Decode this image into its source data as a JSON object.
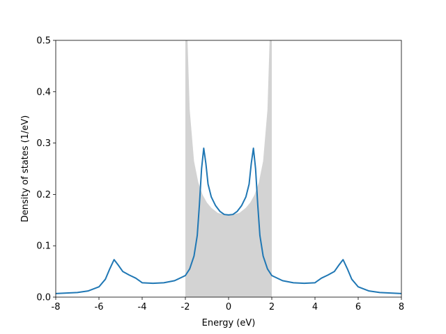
{
  "chart_data": {
    "type": "line",
    "xlabel": "Energy (eV)",
    "ylabel": "Density of states (1/eV)",
    "xlim": [
      -8,
      8
    ],
    "xticks": [
      -8,
      -6,
      -4,
      -2,
      0,
      2,
      4,
      6,
      8
    ],
    "ylim": [
      0,
      0.5
    ],
    "yticks": [
      {
        "value": 0,
        "label": "0.0"
      },
      0.1,
      0.2,
      0.3,
      0.4,
      0.5
    ],
    "series": [
      {
        "color": "#d3d3d3",
        "fill": true,
        "x": [
          -2,
          -1.95,
          -1.9,
          -1.8,
          -1.6,
          -1.4,
          -1.2,
          -1.0,
          -0.8,
          -0.5,
          0,
          0.5,
          0.8,
          1.0,
          1.2,
          1.4,
          1.6,
          1.8,
          1.9,
          1.95,
          2
        ],
        "values": [
          0.5,
          0.5,
          0.5,
          0.365,
          0.265,
          0.223,
          0.199,
          0.184,
          0.174,
          0.164,
          0.159,
          0.164,
          0.174,
          0.184,
          0.199,
          0.223,
          0.265,
          0.365,
          0.5,
          0.5,
          0.5
        ]
      },
      {
        "color": "#1f77b4",
        "x": [
          -8,
          -7,
          -6.5,
          -6,
          -5.7,
          -5.5,
          -5.3,
          -5.1,
          -4.9,
          -4.6,
          -4.3,
          -4.1,
          -4.0,
          -3.5,
          -3,
          -2.5,
          -2.0,
          -1.8,
          -1.6,
          -1.45,
          -1.35,
          -1.25,
          -1.15,
          -1.05,
          -0.95,
          -0.8,
          -0.6,
          -0.4,
          -0.2,
          0,
          0.2,
          0.4,
          0.6,
          0.8,
          0.95,
          1.05,
          1.15,
          1.25,
          1.35,
          1.45,
          1.6,
          1.8,
          2.0,
          2.5,
          3,
          3.5,
          4.0,
          4.1,
          4.3,
          4.6,
          4.9,
          5.1,
          5.3,
          5.5,
          5.7,
          6,
          6.5,
          7,
          8
        ],
        "values": [
          0.007,
          0.009,
          0.012,
          0.02,
          0.035,
          0.055,
          0.073,
          0.062,
          0.05,
          0.043,
          0.037,
          0.031,
          0.028,
          0.027,
          0.028,
          0.032,
          0.042,
          0.055,
          0.08,
          0.12,
          0.18,
          0.25,
          0.29,
          0.26,
          0.22,
          0.195,
          0.178,
          0.167,
          0.161,
          0.16,
          0.161,
          0.167,
          0.178,
          0.195,
          0.22,
          0.26,
          0.29,
          0.25,
          0.18,
          0.12,
          0.08,
          0.055,
          0.042,
          0.032,
          0.028,
          0.027,
          0.028,
          0.031,
          0.037,
          0.043,
          0.05,
          0.062,
          0.073,
          0.055,
          0.035,
          0.02,
          0.012,
          0.009,
          0.007
        ]
      }
    ]
  }
}
